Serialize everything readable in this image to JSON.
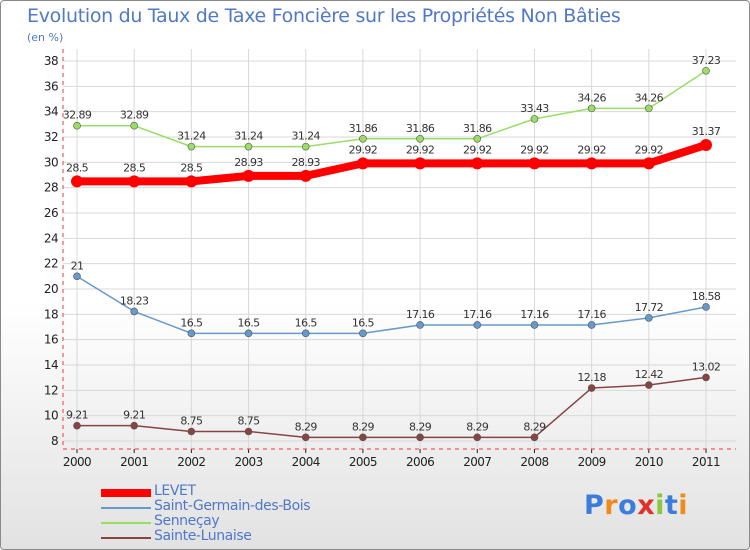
{
  "title": "Evolution du Taux de Taxe Foncière sur les Propriétés Non Bâties",
  "subtitle": "(en %)",
  "logo": "Proxiti",
  "chart_data": {
    "type": "line",
    "x": [
      "2000",
      "2001",
      "2002",
      "2003",
      "2004",
      "2005",
      "2006",
      "2007",
      "2008",
      "2009",
      "2010",
      "2011"
    ],
    "ylim": [
      8,
      38
    ],
    "yticks": [
      8,
      10,
      12,
      14,
      16,
      18,
      20,
      22,
      24,
      26,
      28,
      30,
      32,
      34,
      36,
      38
    ],
    "grid": true,
    "legend_position": "bottom-left",
    "series": [
      {
        "name": "LEVET",
        "color": "#ff0000",
        "width": 8,
        "marker": 6,
        "values": [
          28.5,
          28.5,
          28.5,
          28.93,
          28.93,
          29.92,
          29.92,
          29.92,
          29.92,
          29.92,
          29.92,
          31.37
        ],
        "labels": [
          "28.5",
          "28.5",
          "28.5",
          "28.93",
          "28.93",
          "29.92",
          "29.92",
          "29.92",
          "29.92",
          "29.92",
          "29.92",
          "31.37"
        ]
      },
      {
        "name": "Saint-Germain-des-Bois",
        "color": "#6699cc",
        "width": 1.5,
        "marker": 3.5,
        "values": [
          21,
          18.23,
          16.5,
          16.5,
          16.5,
          16.5,
          17.16,
          17.16,
          17.16,
          17.16,
          17.72,
          18.58
        ],
        "labels": [
          "21",
          "18.23",
          "16.5",
          "16.5",
          "16.5",
          "16.5",
          "17.16",
          "17.16",
          "17.16",
          "17.16",
          "17.72",
          "18.58"
        ]
      },
      {
        "name": "Senneçay",
        "color": "#99dd66",
        "width": 1.5,
        "marker": 3.5,
        "values": [
          32.89,
          32.89,
          31.24,
          31.24,
          31.24,
          31.86,
          31.86,
          31.86,
          33.43,
          34.26,
          34.26,
          37.23
        ],
        "labels": [
          "32.89",
          "32.89",
          "31.24",
          "31.24",
          "31.24",
          "31.86",
          "31.86",
          "31.86",
          "33.43",
          "34.26",
          "34.26",
          "37.23"
        ]
      },
      {
        "name": "Sainte-Lunaise",
        "color": "#884444",
        "width": 1.5,
        "marker": 3.5,
        "values": [
          9.21,
          9.21,
          8.75,
          8.75,
          8.29,
          8.29,
          8.29,
          8.29,
          8.29,
          12.18,
          12.42,
          13.02
        ],
        "labels": [
          "9.21",
          "9.21",
          "8.75",
          "8.75",
          "8.29",
          "8.29",
          "8.29",
          "8.29",
          "8.29",
          "12.18",
          "12.42",
          "13.02"
        ]
      }
    ]
  }
}
